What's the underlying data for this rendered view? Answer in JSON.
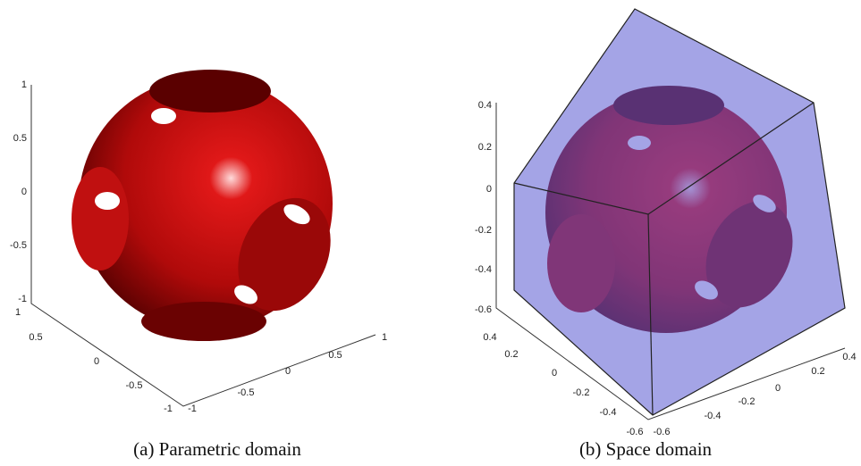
{
  "panels": [
    {
      "caption": "(a) Parametric domain",
      "z_ticks": [
        "1",
        "0.5",
        "0",
        "-0.5",
        "-1"
      ],
      "x_ticks": [
        "1",
        "0.5",
        "0",
        "-0.5",
        "-1"
      ],
      "y_ticks": [
        "-1",
        "-0.5",
        "0",
        "0.5",
        "1"
      ]
    },
    {
      "caption": "(b) Space domain",
      "z_ticks": [
        "0.4",
        "0.2",
        "0",
        "-0.2",
        "-0.4",
        "-0.6"
      ],
      "x_ticks": [
        "0.4",
        "0.2",
        "0",
        "-0.2",
        "-0.4",
        "-0.6"
      ],
      "y_ticks": [
        "-0.6",
        "-0.4",
        "-0.2",
        "0",
        "0.2",
        "0.4"
      ]
    }
  ]
}
